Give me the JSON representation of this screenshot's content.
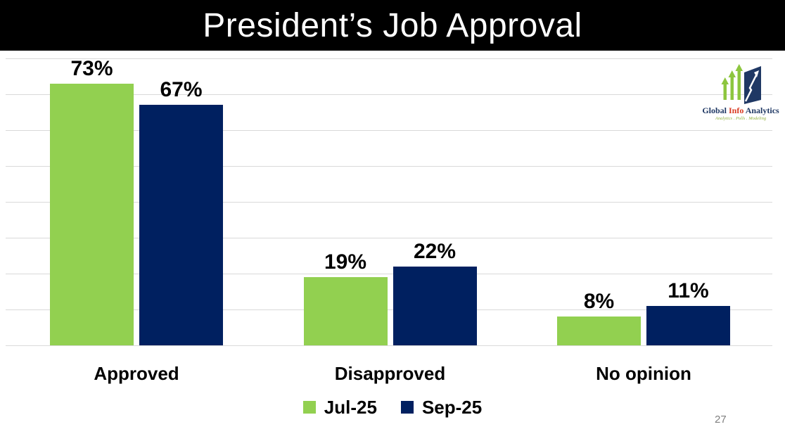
{
  "header": {
    "title": "President’s Job Approval",
    "bg_color": "#000000",
    "text_color": "#ffffff"
  },
  "logo": {
    "name": "Global Info Analytics logo",
    "word1": "Global",
    "word2": "Info",
    "word3": "Analytics",
    "word_colors": [
      "#1f3864",
      "#d93a21",
      "#1f3864"
    ],
    "tagline": "Analytics . Polls . Modeling",
    "tagline_color": "#8faf3c",
    "arrow_green": "#8DC63F",
    "shape_navy": "#1f3864"
  },
  "page_number": "27",
  "chart_data": {
    "type": "bar",
    "title": "President’s Job Approval",
    "categories": [
      "Approved",
      "Disapproved",
      "No opinion"
    ],
    "series": [
      {
        "name": "Jul-25",
        "color": "#92D050",
        "values": [
          73,
          19,
          8
        ]
      },
      {
        "name": "Sep-25",
        "color": "#002060",
        "values": [
          67,
          22,
          11
        ]
      }
    ],
    "value_suffix": "%",
    "xlabel": "",
    "ylabel": "",
    "ylim": [
      0,
      80
    ],
    "gridline_step": 10,
    "grid": true,
    "gridline_color": "#D9D9D9",
    "label_color": "#000000",
    "legend_position": "bottom"
  }
}
